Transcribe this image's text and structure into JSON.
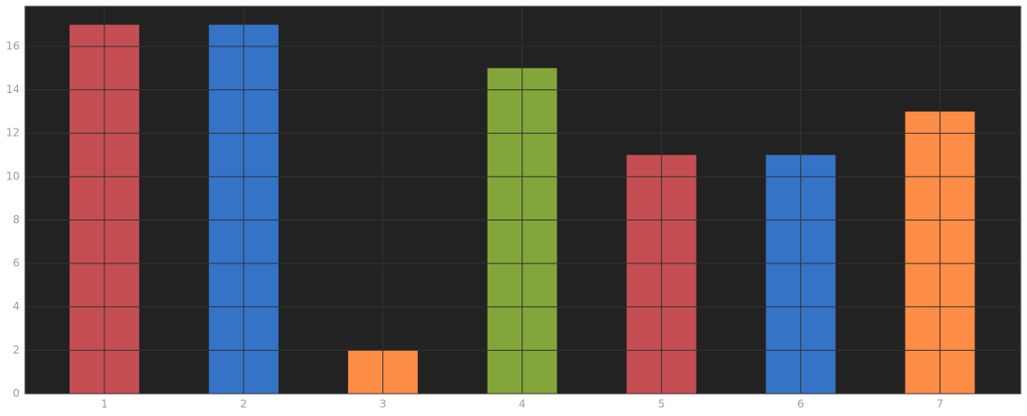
{
  "chart_data": {
    "type": "bar",
    "x": [
      1,
      2,
      3,
      4,
      5,
      6,
      7
    ],
    "values": [
      17,
      17,
      2,
      15,
      11,
      11,
      13
    ],
    "colors": [
      "#c44e52",
      "#3473c6",
      "#fd8c47",
      "#83a53a",
      "#c44e52",
      "#3473c6",
      "#fd8c47"
    ],
    "xlim": [
      0.43,
      7.58
    ],
    "xticks": [
      1,
      2,
      3,
      4,
      5,
      6,
      7
    ],
    "ylim": [
      0,
      17.85
    ],
    "yticks": [
      0,
      2,
      4,
      6,
      8,
      10,
      12,
      14,
      16
    ],
    "grid": true
  }
}
